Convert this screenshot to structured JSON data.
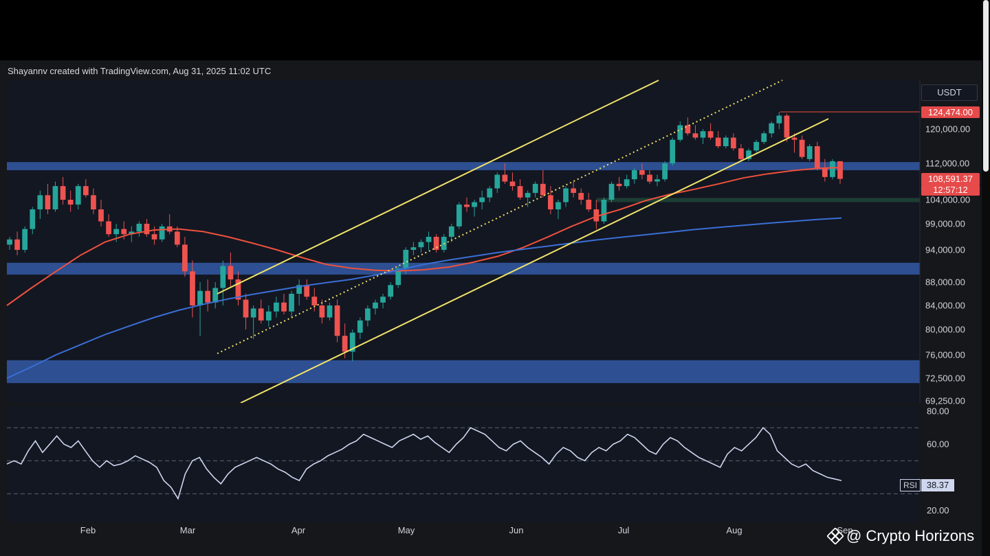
{
  "attribution": "Shayannv created with TradingView.com, Aug 31, 2025 11:02 UTC",
  "watermark": "@ Crypto Horizons",
  "chart_data": [
    {
      "type": "line",
      "title": "",
      "currency_label": "USDT",
      "price_axis_ticks": [
        "120,000.00",
        "112,000.00",
        "104,000.00",
        "99,000.00",
        "94,000.00",
        "88,000.00",
        "84,000.00",
        "80,000.00",
        "76,000.00",
        "72,500.00",
        "69,250.00"
      ],
      "x_tick_labels": [
        "Feb",
        "Mar",
        "Apr",
        "May",
        "Jun",
        "Jul",
        "Aug",
        "Sep"
      ],
      "badges": {
        "high": "124,474.00",
        "last": "108,591.37",
        "countdown": "12:57:12"
      },
      "ylim": [
        69250,
        127000
      ],
      "support_resistance_zones": [
        {
          "from": 110500,
          "to": 112300,
          "color": "#2e4f91"
        },
        {
          "from": 89400,
          "to": 91600,
          "color": "#2e4f91"
        },
        {
          "from": 71800,
          "to": 75200,
          "color": "#2e4f91"
        },
        {
          "from": 103500,
          "to": 104400,
          "color": "#1d3d33"
        }
      ],
      "candles_ohlc_approx": [
        [
          95000,
          96500,
          94000,
          96000
        ],
        [
          96000,
          97500,
          93000,
          94000
        ],
        [
          94000,
          98500,
          93500,
          98000
        ],
        [
          98000,
          102500,
          97000,
          102000
        ],
        [
          102000,
          106000,
          100000,
          105000
        ],
        [
          105000,
          107500,
          101000,
          102000
        ],
        [
          102000,
          108000,
          101500,
          107000
        ],
        [
          107000,
          109000,
          103000,
          104000
        ],
        [
          104000,
          106000,
          101500,
          103000
        ],
        [
          103000,
          107500,
          102000,
          107000
        ],
        [
          107000,
          108500,
          104500,
          105000
        ],
        [
          105000,
          106500,
          101000,
          102000
        ],
        [
          102000,
          104000,
          98500,
          99500
        ],
        [
          99500,
          101000,
          96500,
          97000
        ],
        [
          97000,
          99000,
          95500,
          98000
        ],
        [
          98000,
          99500,
          96000,
          97000
        ],
        [
          97000,
          98500,
          95500,
          97500
        ],
        [
          97500,
          99500,
          96500,
          99000
        ],
        [
          99000,
          100000,
          96500,
          97000
        ],
        [
          97000,
          98500,
          95000,
          96000
        ],
        [
          96000,
          99000,
          95500,
          98500
        ],
        [
          98500,
          101000,
          97000,
          97500
        ],
        [
          97500,
          98500,
          94500,
          95000
        ],
        [
          95000,
          96500,
          89000,
          90000
        ],
        [
          90000,
          92000,
          82000,
          84000
        ],
        [
          84000,
          88000,
          79000,
          86500
        ],
        [
          86500,
          88500,
          83000,
          84500
        ],
        [
          84500,
          88000,
          83500,
          87000
        ],
        [
          87000,
          92000,
          84000,
          91000
        ],
        [
          91000,
          93500,
          87000,
          88500
        ],
        [
          88500,
          90000,
          84000,
          85000
        ],
        [
          85000,
          86000,
          80000,
          82000
        ],
        [
          82000,
          84000,
          78500,
          83500
        ],
        [
          83500,
          85000,
          81000,
          81500
        ],
        [
          81500,
          84000,
          80500,
          83000
        ],
        [
          83000,
          85500,
          82000,
          84500
        ],
        [
          84500,
          86000,
          82500,
          83000
        ],
        [
          83000,
          86500,
          82000,
          86000
        ],
        [
          86000,
          88500,
          84000,
          87500
        ],
        [
          87500,
          88500,
          85000,
          85500
        ],
        [
          85500,
          87000,
          83000,
          84000
        ],
        [
          84000,
          85000,
          81000,
          82000
        ],
        [
          82000,
          84500,
          81500,
          84000
        ],
        [
          84000,
          85000,
          78000,
          79000
        ],
        [
          79000,
          81000,
          75500,
          76500
        ],
        [
          76500,
          80000,
          75000,
          79500
        ],
        [
          79500,
          82000,
          78500,
          81500
        ],
        [
          81500,
          84000,
          80500,
          83500
        ],
        [
          83500,
          85000,
          82500,
          84500
        ],
        [
          84500,
          86000,
          83500,
          85500
        ],
        [
          85500,
          88000,
          85000,
          87500
        ],
        [
          87500,
          91000,
          87000,
          90500
        ],
        [
          90500,
          94500,
          89500,
          94000
        ],
        [
          94000,
          95500,
          93000,
          94500
        ],
        [
          94500,
          96000,
          93500,
          95500
        ],
        [
          95500,
          97500,
          94000,
          96500
        ],
        [
          96500,
          97000,
          93500,
          94000
        ],
        [
          94000,
          97000,
          93500,
          96500
        ],
        [
          96500,
          99000,
          95500,
          98500
        ],
        [
          98500,
          103500,
          98000,
          103000
        ],
        [
          103000,
          104500,
          101500,
          102500
        ],
        [
          102500,
          104000,
          100500,
          103500
        ],
        [
          103500,
          106000,
          102000,
          104500
        ],
        [
          104500,
          107000,
          103500,
          106500
        ],
        [
          106500,
          110000,
          105500,
          109500
        ],
        [
          109500,
          112000,
          107500,
          108000
        ],
        [
          108000,
          110000,
          106000,
          107000
        ],
        [
          107000,
          108500,
          104000,
          104500
        ],
        [
          104500,
          106000,
          102500,
          105500
        ],
        [
          105500,
          108000,
          104500,
          107500
        ],
        [
          107500,
          110500,
          104500,
          105000
        ],
        [
          105000,
          107000,
          101000,
          102000
        ],
        [
          102000,
          104000,
          100000,
          103500
        ],
        [
          103500,
          107000,
          102500,
          106500
        ],
        [
          106500,
          108000,
          104500,
          105500
        ],
        [
          105500,
          106500,
          103000,
          104000
        ],
        [
          104000,
          105500,
          101500,
          102000
        ],
        [
          102000,
          104000,
          98000,
          99500
        ],
        [
          99500,
          104500,
          99000,
          104000
        ],
        [
          104000,
          108000,
          103500,
          107500
        ],
        [
          107500,
          109000,
          106000,
          107000
        ],
        [
          107000,
          109500,
          106500,
          108500
        ],
        [
          108500,
          111000,
          107500,
          110500
        ],
        [
          110500,
          112000,
          108500,
          109500
        ],
        [
          109500,
          110500,
          107500,
          108000
        ],
        [
          108000,
          109500,
          107000,
          108500
        ],
        [
          108500,
          112500,
          108000,
          112000
        ],
        [
          112000,
          118000,
          111500,
          117500
        ],
        [
          117500,
          122000,
          117000,
          121000
        ],
        [
          121000,
          123000,
          118500,
          119000
        ],
        [
          119000,
          121000,
          117500,
          118000
        ],
        [
          118000,
          120000,
          116500,
          119500
        ],
        [
          119500,
          121500,
          117500,
          118000
        ],
        [
          118000,
          119500,
          115500,
          116000
        ],
        [
          116000,
          118500,
          115500,
          118000
        ],
        [
          118000,
          119000,
          115000,
          115500
        ],
        [
          115500,
          116500,
          112500,
          113000
        ],
        [
          113000,
          115500,
          112500,
          115000
        ],
        [
          115000,
          117500,
          114500,
          117000
        ],
        [
          117000,
          119500,
          116500,
          119000
        ],
        [
          119000,
          122000,
          118000,
          121500
        ],
        [
          121500,
          124474,
          120000,
          123500
        ],
        [
          123500,
          124000,
          117000,
          118000
        ],
        [
          118000,
          119000,
          114500,
          117500
        ],
        [
          117500,
          118500,
          113000,
          113500
        ],
        [
          113000,
          116500,
          112500,
          116000
        ],
        [
          116000,
          117000,
          110500,
          111000
        ],
        [
          111000,
          113000,
          108000,
          109000
        ],
        [
          109000,
          113000,
          108500,
          112500
        ],
        [
          112500,
          112500,
          107500,
          108591
        ]
      ],
      "series": [
        {
          "name": "",
          "color": "#f0513d",
          "values_approx": [
            84000,
            87000,
            90000,
            93000,
            95500,
            97000,
            97800,
            98000,
            97500,
            96500,
            95300,
            94000,
            92600,
            91300,
            90600,
            90200,
            90100,
            90300,
            90800,
            91700,
            92800,
            94400,
            96400,
            98500,
            100500,
            102000,
            103800,
            105200,
            106300,
            107500,
            108800,
            109700,
            110400,
            110900,
            111100
          ]
        },
        {
          "name": "",
          "color": "#3b6fd6",
          "values_approx": [
            72500,
            74200,
            76000,
            77600,
            79200,
            80600,
            82000,
            83200,
            84200,
            85100,
            85900,
            86600,
            87300,
            87900,
            88500,
            89300,
            90300,
            91300,
            92100,
            92800,
            93500,
            94100,
            94700,
            95300,
            95900,
            96400,
            96900,
            97400,
            97900,
            98300,
            98700,
            99100,
            99500,
            99900,
            100200
          ]
        }
      ],
      "channel_lines": [
        {
          "style": "solid",
          "color": "#f1e36a"
        },
        {
          "style": "dotted",
          "color": "#f1e36a"
        },
        {
          "style": "solid",
          "color": "#f1e36a"
        }
      ]
    },
    {
      "type": "line",
      "title": "",
      "indicator_label": "RSI",
      "current_value": "38.37",
      "y_tick_labels": [
        "80.00",
        "60.00",
        "20.00"
      ],
      "ylim": [
        16,
        80
      ],
      "reference_levels": [
        70,
        50,
        30
      ],
      "series": [
        {
          "name": "",
          "color": "#cfd7ee",
          "values_approx": [
            48,
            50,
            48,
            56,
            62,
            55,
            60,
            65,
            60,
            58,
            62,
            56,
            50,
            46,
            50,
            47,
            48,
            50,
            53,
            51,
            49,
            46,
            38,
            34,
            27,
            42,
            50,
            52,
            45,
            40,
            36,
            42,
            46,
            48,
            50,
            52,
            50,
            48,
            45,
            43,
            40,
            38,
            45,
            48,
            50,
            53,
            55,
            57,
            60,
            62,
            66,
            64,
            62,
            60,
            58,
            62,
            64,
            66,
            63,
            65,
            61,
            58,
            55,
            60,
            64,
            70,
            68,
            66,
            62,
            58,
            56,
            60,
            62,
            58,
            55,
            52,
            48,
            54,
            58,
            56,
            52,
            50,
            55,
            58,
            56,
            60,
            62,
            66,
            64,
            60,
            56,
            54,
            60,
            64,
            62,
            58,
            55,
            52,
            50,
            48,
            46,
            54,
            58,
            56,
            60,
            64,
            70,
            66,
            56,
            52,
            48,
            46,
            48,
            44,
            42,
            40,
            39,
            38
          ]
        }
      ]
    }
  ]
}
